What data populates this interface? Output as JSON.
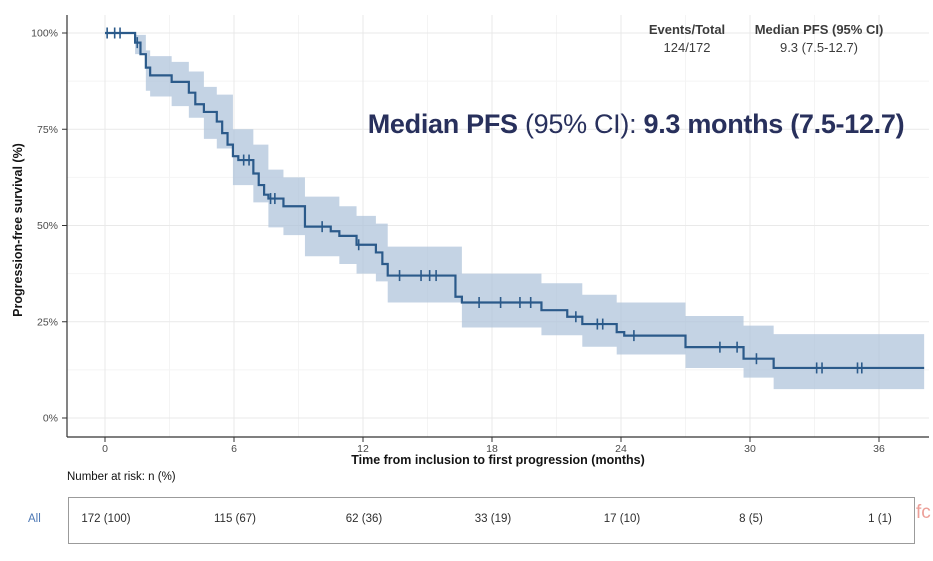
{
  "stats": {
    "headers": [
      "Events/Total",
      "Median PFS (95% CI)"
    ],
    "values": [
      "124/172",
      "9.3 (7.5-12.7)"
    ]
  },
  "annotation": {
    "bold_lead": "Median PFS",
    "normal_mid": " (95% CI): ",
    "bold_value": "9.3 months (7.5-12.7)"
  },
  "risk_table": {
    "label": "Number at risk: n (%)",
    "row_label": "All",
    "times": [
      0,
      6,
      12,
      18,
      24,
      30,
      36
    ],
    "values": [
      "172 (100)",
      "115 (67)",
      "62 (36)",
      "33 (19)",
      "17 (10)",
      "8 (5)",
      "1 (1)"
    ]
  },
  "watermark": "fc",
  "chart_data": {
    "type": "line",
    "subtype": "kaplan-meier-step",
    "title": "",
    "xlabel": "Time from inclusion to first progression (months)",
    "ylabel": "Progression-free survival (%)",
    "x_ticks": [
      0,
      6,
      12,
      18,
      24,
      30,
      36
    ],
    "x_minor_ticks": [
      3,
      9,
      15,
      21,
      27,
      33
    ],
    "y_ticks": [
      0,
      25,
      50,
      75,
      100
    ],
    "y_minor_ticks": [
      12.5,
      37.5,
      62.5,
      87.5
    ],
    "y_tick_suffix": "%",
    "xlim": [
      -1.8,
      38.4
    ],
    "ylim": [
      0,
      100
    ],
    "grid": true,
    "legend": "none",
    "line_color": "#2b5a8a",
    "band_color": "#adc2d9",
    "axis_color": "#333333",
    "tick_label_color": "#4b4b4b",
    "series": [
      {
        "name": "All",
        "steps": [
          [
            0,
            100
          ],
          [
            1.4,
            97.5
          ],
          [
            1.65,
            94.5
          ],
          [
            1.9,
            91
          ],
          [
            2.1,
            89
          ],
          [
            3.1,
            87.3
          ],
          [
            3.9,
            84.5
          ],
          [
            4.2,
            81.5
          ],
          [
            4.6,
            79.5
          ],
          [
            5.2,
            77
          ],
          [
            5.45,
            74
          ],
          [
            5.7,
            71
          ],
          [
            5.95,
            68
          ],
          [
            6.2,
            67
          ],
          [
            6.9,
            63.5
          ],
          [
            7.15,
            60.5
          ],
          [
            7.4,
            58
          ],
          [
            7.6,
            57
          ],
          [
            8.3,
            55
          ],
          [
            9.3,
            49.7
          ],
          [
            10.5,
            48.5
          ],
          [
            10.9,
            47.3
          ],
          [
            11.7,
            45
          ],
          [
            12.6,
            43
          ],
          [
            12.9,
            40
          ],
          [
            13.15,
            37
          ],
          [
            16.3,
            31.5
          ],
          [
            16.6,
            30
          ],
          [
            20.3,
            28
          ],
          [
            21.5,
            26.3
          ],
          [
            22.2,
            24.4
          ],
          [
            23.8,
            22.3
          ],
          [
            24.15,
            21.4
          ],
          [
            27,
            18.4
          ],
          [
            29.7,
            15.4
          ],
          [
            31.1,
            13
          ],
          [
            38.1,
            13
          ]
        ],
        "censor_times": [
          0.1,
          0.45,
          0.7,
          1.5,
          6.45,
          6.7,
          7.7,
          7.9,
          10.1,
          11.8,
          13.7,
          14.7,
          15.1,
          15.4,
          17.4,
          18.4,
          19.3,
          19.8,
          21.9,
          22.9,
          23.15,
          24.6,
          28.6,
          29.4,
          30.3,
          33.1,
          33.35,
          35.0,
          35.2
        ],
        "ci": [
          [
            0,
            100,
            100
          ],
          [
            1.4,
            94.5,
            99.5
          ],
          [
            1.9,
            85,
            95.5
          ],
          [
            2.1,
            83.5,
            94
          ],
          [
            3.1,
            81,
            92.5
          ],
          [
            3.9,
            78,
            90
          ],
          [
            4.6,
            72.5,
            86
          ],
          [
            5.2,
            70,
            84
          ],
          [
            5.95,
            60.5,
            75
          ],
          [
            6.9,
            56,
            71
          ],
          [
            7.6,
            49.5,
            64.5
          ],
          [
            8.3,
            47.5,
            62.5
          ],
          [
            9.3,
            42,
            57.5
          ],
          [
            10.9,
            40,
            55
          ],
          [
            11.7,
            37.5,
            52.5
          ],
          [
            12.6,
            35.5,
            50.5
          ],
          [
            13.15,
            30,
            44.5
          ],
          [
            16.6,
            23.5,
            37.5
          ],
          [
            20.3,
            21.5,
            35
          ],
          [
            22.2,
            18.5,
            32
          ],
          [
            23.8,
            16.5,
            30
          ],
          [
            27,
            13,
            26.5
          ],
          [
            29.7,
            10.5,
            24
          ],
          [
            31.1,
            7.5,
            21.8
          ],
          [
            38.1,
            7.5,
            21.8
          ]
        ]
      }
    ]
  }
}
